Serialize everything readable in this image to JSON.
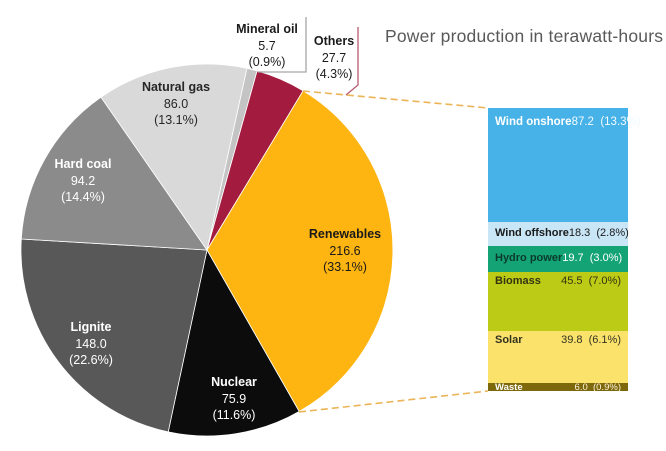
{
  "chart_data": {
    "type": "pie",
    "title": "Power production in terawatt-hours (TWh)",
    "units": "TWh",
    "start_angle_deg": 12.4,
    "slices": [
      {
        "label": "Mineral oil",
        "value": 5.7,
        "pct": 0.9,
        "color": "#C4C4C4"
      },
      {
        "label": "Others",
        "value": 27.7,
        "pct": 4.3,
        "color": "#A31B3E"
      },
      {
        "label": "Renewables",
        "value": 216.6,
        "pct": 33.1,
        "color": "#FEB511"
      },
      {
        "label": "Nuclear",
        "value": 75.9,
        "pct": 11.6,
        "color": "#0C0C0C"
      },
      {
        "label": "Lignite",
        "value": 148.0,
        "pct": 22.6,
        "color": "#585858"
      },
      {
        "label": "Hard coal",
        "value": 94.2,
        "pct": 14.4,
        "color": "#8B8B8B"
      },
      {
        "label": "Natural gas",
        "value": 86.0,
        "pct": 13.1,
        "color": "#D9D9D9"
      }
    ],
    "breakdown": {
      "parent": "Renewables",
      "type": "stacked-bar",
      "segments": [
        {
          "label": "Wind onshore",
          "value": 87.2,
          "pct": 13.3,
          "color": "#47B2E7",
          "label_color": "#FFFFFF",
          "value_color": "#F2FAFE"
        },
        {
          "label": "Wind offshore",
          "value": 18.3,
          "pct": 2.8,
          "color": "#C9E6F6",
          "label_color": "#1A1A1A",
          "value_color": "#1A1A1A"
        },
        {
          "label": "Hydro power",
          "value": 19.7,
          "pct": 3.0,
          "color": "#14A374",
          "label_color": "#0A3B2A",
          "value_color": "#FFFFFF"
        },
        {
          "label": "Biomass",
          "value": 45.5,
          "pct": 7.0,
          "color": "#BCCB16",
          "label_color": "#333311",
          "value_color": "#333311"
        },
        {
          "label": "Solar",
          "value": 39.8,
          "pct": 6.1,
          "color": "#FBE26B",
          "label_color": "#333322",
          "value_color": "#333322"
        },
        {
          "label": "Waste",
          "value": 6.0,
          "pct": 0.9,
          "color": "#7D680B",
          "label_color": "#FFFFFF",
          "value_color": "#FFF8E0"
        }
      ]
    }
  }
}
